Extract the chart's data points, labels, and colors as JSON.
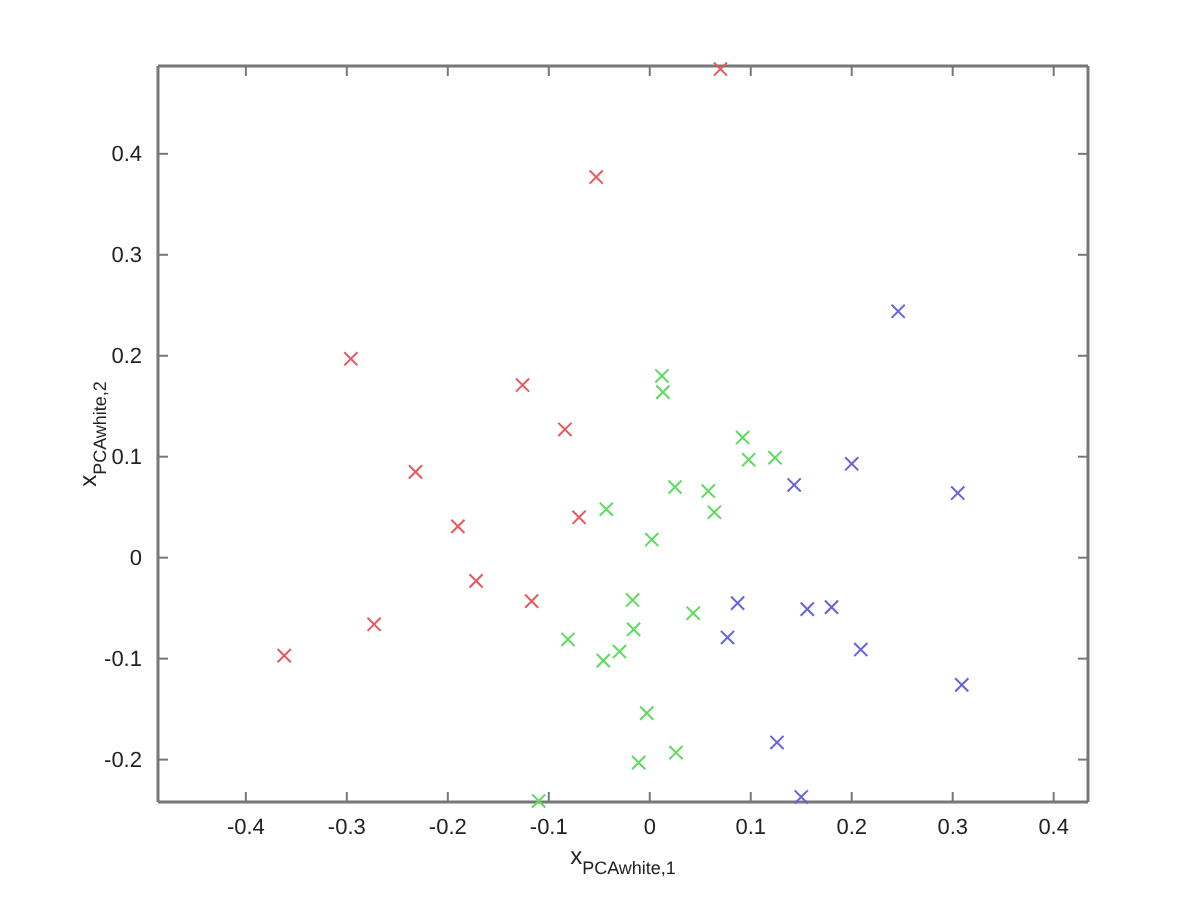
{
  "chart_data": {
    "type": "scatter",
    "xlabel": "x$_{PCAwhite,1}$",
    "ylabel": "x$_{PCAwhite,2}$",
    "marker": "cross",
    "xlim": [
      -0.487,
      0.434
    ],
    "ylim": [
      -0.242,
      0.487
    ],
    "xticks": [
      -0.4,
      -0.3,
      -0.2,
      -0.1,
      0,
      0.1,
      0.2,
      0.3,
      0.4
    ],
    "yticks": [
      -0.2,
      -0.1,
      0,
      0.1,
      0.2,
      0.3,
      0.4
    ],
    "series": [
      {
        "color": "#e8585c",
        "x": [
          -0.362,
          -0.273,
          -0.232,
          -0.19,
          -0.172,
          -0.117,
          -0.07,
          -0.084,
          -0.126,
          -0.296,
          -0.053,
          0.07
        ],
        "values": [
          -0.097,
          -0.066,
          0.085,
          0.031,
          -0.023,
          -0.043,
          0.04,
          0.127,
          0.171,
          0.197,
          0.377,
          0.484
        ]
      },
      {
        "color": "#5cdc5c",
        "x": [
          -0.043,
          0.002,
          -0.017,
          -0.016,
          -0.03,
          -0.046,
          -0.081,
          -0.003,
          -0.011,
          -0.11,
          0.026,
          0.043,
          0.025,
          0.058,
          0.064,
          0.092,
          0.098,
          0.124,
          0.012,
          0.013
        ],
        "values": [
          0.048,
          0.018,
          -0.042,
          -0.071,
          -0.093,
          -0.102,
          -0.081,
          -0.154,
          -0.203,
          -0.241,
          -0.193,
          -0.055,
          0.07,
          0.066,
          0.045,
          0.119,
          0.097,
          0.099,
          0.18,
          0.164
        ]
      },
      {
        "color": "#6464e0",
        "x": [
          0.246,
          0.143,
          0.2,
          0.305,
          0.087,
          0.077,
          0.156,
          0.18,
          0.209,
          0.309,
          0.126,
          0.15
        ],
        "values": [
          0.244,
          0.072,
          0.093,
          0.064,
          -0.045,
          -0.079,
          -0.051,
          -0.049,
          -0.091,
          -0.126,
          -0.183,
          -0.237
        ]
      }
    ]
  }
}
